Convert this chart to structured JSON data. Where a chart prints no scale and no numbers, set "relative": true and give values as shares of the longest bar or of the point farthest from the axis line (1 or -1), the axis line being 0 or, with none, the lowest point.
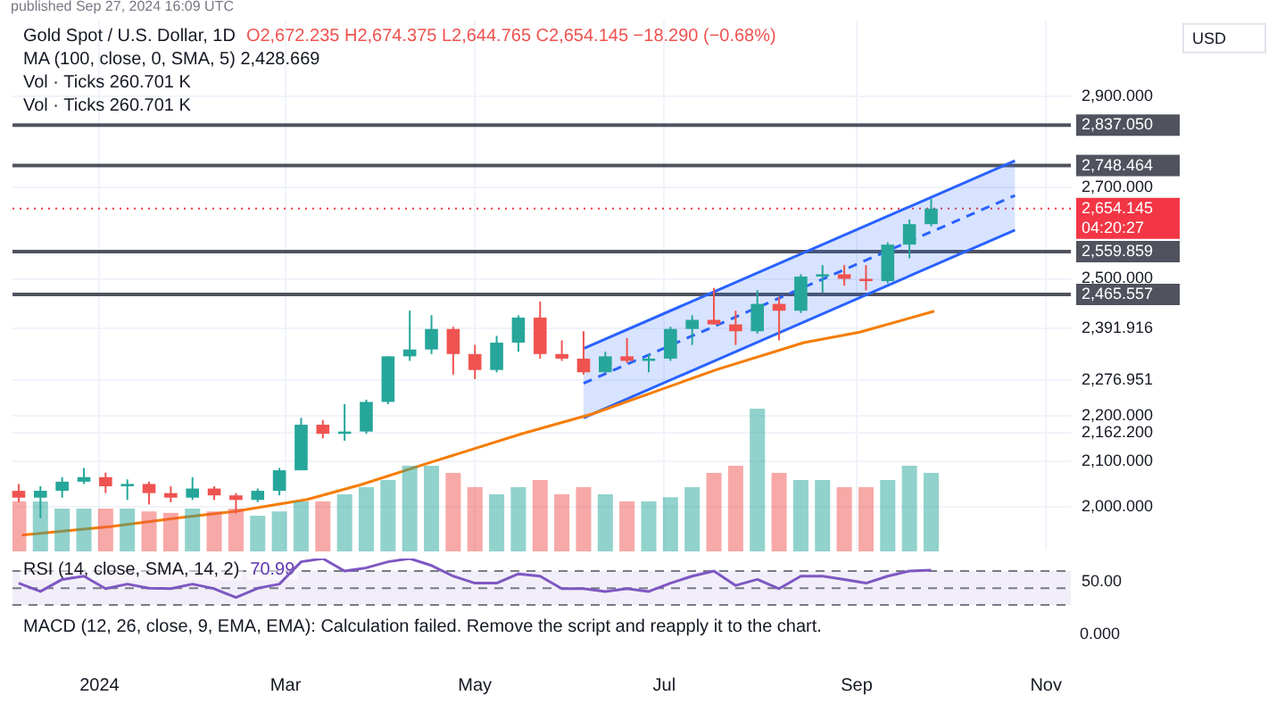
{
  "chart_data": [
    {
      "type": "candlestick",
      "subtitle": "published Sep 27, 2024 16:09 UTC",
      "title": "Gold Spot / U.S. Dollar, 1D",
      "ylabel": "USD",
      "annotations": [
        "O2,672.235 H2,674.375 L2,644.765 C2,654.145 −18.290 (−0.68%)",
        "MA (100, close, 0, SMA, 5) 2,428.669",
        "Vol · Ticks 260.701 K",
        "Vol · Ticks 260.701 K"
      ],
      "x": [
        "2023-12-06",
        "2023-12-13",
        "2023-12-20",
        "2023-12-27",
        "2024-01-03",
        "2024-01-10",
        "2024-01-17",
        "2024-01-24",
        "2024-01-31",
        "2024-02-07",
        "2024-02-14",
        "2024-02-21",
        "2024-02-28",
        "2024-03-06",
        "2024-03-13",
        "2024-03-20",
        "2024-03-27",
        "2024-04-03",
        "2024-04-10",
        "2024-04-17",
        "2024-04-24",
        "2024-05-01",
        "2024-05-08",
        "2024-05-15",
        "2024-05-22",
        "2024-05-29",
        "2024-06-05",
        "2024-06-12",
        "2024-06-19",
        "2024-06-26",
        "2024-07-03",
        "2024-07-10",
        "2024-07-17",
        "2024-07-24",
        "2024-07-31",
        "2024-08-07",
        "2024-08-14",
        "2024-08-21",
        "2024-08-28",
        "2024-09-04",
        "2024-09-11",
        "2024-09-18",
        "2024-09-25"
      ],
      "ohlc": [
        [
          2035,
          2050,
          2010,
          2020
        ],
        [
          2020,
          2045,
          1975,
          2035
        ],
        [
          2035,
          2065,
          2020,
          2055
        ],
        [
          2055,
          2085,
          2050,
          2065
        ],
        [
          2065,
          2075,
          2030,
          2045
        ],
        [
          2045,
          2060,
          2015,
          2050
        ],
        [
          2050,
          2055,
          2005,
          2030
        ],
        [
          2030,
          2045,
          2010,
          2020
        ],
        [
          2020,
          2065,
          2015,
          2040
        ],
        [
          2040,
          2045,
          2015,
          2025
        ],
        [
          2025,
          2030,
          1985,
          2015
        ],
        [
          2015,
          2040,
          2010,
          2035
        ],
        [
          2035,
          2085,
          2025,
          2080
        ],
        [
          2080,
          2195,
          2080,
          2180
        ],
        [
          2180,
          2190,
          2150,
          2160
        ],
        [
          2160,
          2225,
          2145,
          2165
        ],
        [
          2165,
          2235,
          2160,
          2230
        ],
        [
          2230,
          2330,
          2225,
          2330
        ],
        [
          2330,
          2430,
          2320,
          2345
        ],
        [
          2345,
          2420,
          2335,
          2390
        ],
        [
          2390,
          2395,
          2290,
          2335
        ],
        [
          2335,
          2355,
          2280,
          2300
        ],
        [
          2300,
          2375,
          2295,
          2360
        ],
        [
          2360,
          2420,
          2340,
          2415
        ],
        [
          2415,
          2450,
          2325,
          2335
        ],
        [
          2335,
          2365,
          2320,
          2325
        ],
        [
          2325,
          2385,
          2290,
          2295
        ],
        [
          2295,
          2340,
          2295,
          2330
        ],
        [
          2330,
          2370,
          2315,
          2320
        ],
        [
          2320,
          2335,
          2295,
          2325
        ],
        [
          2325,
          2395,
          2320,
          2390
        ],
        [
          2390,
          2420,
          2355,
          2410
        ],
        [
          2410,
          2480,
          2400,
          2400
        ],
        [
          2400,
          2430,
          2355,
          2385
        ],
        [
          2385,
          2475,
          2380,
          2445
        ],
        [
          2445,
          2460,
          2365,
          2430
        ],
        [
          2430,
          2510,
          2425,
          2505
        ],
        [
          2505,
          2530,
          2470,
          2510
        ],
        [
          2510,
          2530,
          2485,
          2500
        ],
        [
          2500,
          2530,
          2475,
          2495
        ],
        [
          2495,
          2580,
          2490,
          2575
        ],
        [
          2575,
          2630,
          2545,
          2620
        ],
        [
          2620,
          2675,
          2615,
          2654
        ]
      ],
      "colors": [
        "#ef5350",
        "#26a69a",
        "#26a69a",
        "#26a69a",
        "#ef5350",
        "#26a69a",
        "#ef5350",
        "#ef5350",
        "#26a69a",
        "#ef5350",
        "#ef5350",
        "#26a69a",
        "#26a69a",
        "#26a69a",
        "#ef5350",
        "#26a69a",
        "#26a69a",
        "#26a69a",
        "#26a69a",
        "#26a69a",
        "#ef5350",
        "#ef5350",
        "#26a69a",
        "#26a69a",
        "#ef5350",
        "#ef5350",
        "#ef5350",
        "#26a69a",
        "#ef5350",
        "#26a69a",
        "#26a69a",
        "#26a69a",
        "#ef5350",
        "#ef5350",
        "#26a69a",
        "#ef5350",
        "#26a69a",
        "#26a69a",
        "#ef5350",
        "#ef5350",
        "#26a69a",
        "#26a69a",
        "#26a69a"
      ],
      "series": [
        {
          "type": "line",
          "color": "#f57c00",
          "x": [
            "2023-12-07",
            "2024-01-05",
            "2024-01-28",
            "2024-02-14",
            "2024-03-08",
            "2024-03-25",
            "2024-04-17",
            "2024-05-16",
            "2024-06-08",
            "2024-07-18",
            "2024-08-15",
            "2024-09-02",
            "2024-09-26"
          ],
          "values": [
            1938,
            1957,
            1977,
            1990,
            2016,
            2048,
            2098,
            2160,
            2204,
            2301,
            2360,
            2383,
            2429
          ]
        },
        {
          "type": "line",
          "color": "#2962ff",
          "x": [
            "2024-06-05",
            "2024-10-22"
          ],
          "values": [
            2347,
            2759
          ]
        },
        {
          "type": "line",
          "color": "#2962ff",
          "x": [
            "2024-06-05",
            "2024-10-22"
          ],
          "values": [
            2195,
            2607
          ]
        },
        {
          "type": "line",
          "color": "#2962ff",
          "line_style": "dashed",
          "x": [
            "2024-06-05",
            "2024-10-22"
          ],
          "values": [
            2271,
            2683
          ],
          "lower": [
            2195,
            2607
          ],
          "upper": [
            2347,
            2759
          ]
        }
      ],
      "xlim": [
        "2023-12-04",
        "2024-11-09"
      ],
      "xticks": [
        {
          "value": "2024-01-01",
          "label": "2024"
        },
        {
          "value": "2024-03-01",
          "label": "Mar"
        },
        {
          "value": "2024-05-01",
          "label": "May"
        },
        {
          "value": "2024-07-01",
          "label": "Jul"
        },
        {
          "value": "2024-09-01",
          "label": "Sep"
        },
        {
          "value": "2024-11-01",
          "label": "Nov"
        }
      ],
      "ylim": [
        1906,
        3067
      ],
      "yticks": [
        {
          "value": 2000,
          "label": "2,000.000"
        },
        {
          "value": 2100,
          "label": "2,100.000"
        },
        {
          "value": 2162.2,
          "label": "2,162.200"
        },
        {
          "value": 2200,
          "label": "2,200.000"
        },
        {
          "value": 2276.951,
          "label": "2,276.951"
        },
        {
          "value": 2391.916,
          "label": "2,391.916"
        },
        {
          "value": 2500,
          "label": "2,500.000"
        },
        {
          "value": 2700,
          "label": "2,700.000"
        },
        {
          "value": 2900,
          "label": "2,900.000"
        }
      ],
      "ref_lines": [
        {
          "axis": "y",
          "value": 2837.05,
          "label": "2,837.050",
          "color": "#50535e"
        },
        {
          "axis": "y",
          "value": 2748.464,
          "label": "2,748.464",
          "color": "#50535e"
        },
        {
          "axis": "y",
          "value": 2559.859,
          "label": "2,559.859",
          "color": "#50535e"
        },
        {
          "axis": "y",
          "value": 2465.557,
          "label": "2,465.557",
          "color": "#50535e"
        },
        {
          "axis": "y",
          "value": 2654.145,
          "label": "2,654.145 04:20:27",
          "color": "#f23645",
          "line_style": "dotted"
        }
      ],
      "grid": true
    },
    {
      "type": "bar",
      "relative": true,
      "tick_labels": false,
      "categories": [
        null,
        null,
        null,
        null,
        null,
        null,
        null,
        null,
        null,
        null,
        null,
        null,
        null,
        null,
        null,
        null,
        null,
        null,
        null,
        null,
        null,
        null,
        null,
        null,
        null,
        null,
        null,
        null,
        null,
        null,
        null,
        null,
        null,
        null,
        null,
        null,
        null,
        null,
        null,
        null,
        null,
        null,
        null
      ],
      "values": [
        0.35,
        0.35,
        0.3,
        0.3,
        0.3,
        0.3,
        0.28,
        0.27,
        0.3,
        0.28,
        0.3,
        0.25,
        0.28,
        0.35,
        0.35,
        0.4,
        0.45,
        0.5,
        0.6,
        0.6,
        0.55,
        0.45,
        0.4,
        0.45,
        0.5,
        0.4,
        0.45,
        0.4,
        0.35,
        0.35,
        0.38,
        0.45,
        0.55,
        0.6,
        1,
        0.55,
        0.5,
        0.5,
        0.45,
        0.45,
        0.5,
        0.6,
        0.55
      ],
      "colors": [
        "#ef5350",
        "#26a69a",
        "#26a69a",
        "#26a69a",
        "#ef5350",
        "#26a69a",
        "#ef5350",
        "#ef5350",
        "#26a69a",
        "#ef5350",
        "#ef5350",
        "#26a69a",
        "#26a69a",
        "#26a69a",
        "#ef5350",
        "#26a69a",
        "#26a69a",
        "#26a69a",
        "#26a69a",
        "#26a69a",
        "#ef5350",
        "#ef5350",
        "#26a69a",
        "#26a69a",
        "#ef5350",
        "#ef5350",
        "#ef5350",
        "#26a69a",
        "#ef5350",
        "#26a69a",
        "#26a69a",
        "#26a69a",
        "#ef5350",
        "#ef5350",
        "#26a69a",
        "#ef5350",
        "#26a69a",
        "#26a69a",
        "#ef5350",
        "#ef5350",
        "#26a69a",
        "#26a69a",
        "#26a69a"
      ]
    },
    {
      "type": "line",
      "relative": true,
      "title": "RSI (14, close, SMA, 14, 2)",
      "annotations": [
        "70.99",
        "50.00"
      ],
      "tick_labels": false,
      "categories": [
        null,
        null,
        null,
        null,
        null,
        null,
        null,
        null,
        null,
        null,
        null,
        null,
        null,
        null,
        null,
        null,
        null,
        null,
        null,
        null,
        null,
        null,
        null,
        null,
        null,
        null,
        null,
        null,
        null,
        null,
        null,
        null,
        null,
        null,
        null,
        null,
        null,
        null,
        null,
        null,
        null,
        null,
        null
      ],
      "series": [
        {
          "color": "#7e57c2",
          "values": [
            0.47,
            0.29,
            0.55,
            0.62,
            0.35,
            0.45,
            0.36,
            0.35,
            0.45,
            0.35,
            0.16,
            0.36,
            0.45,
            0.93,
            1,
            0.73,
            0.8,
            0.93,
            1,
            0.85,
            0.62,
            0.47,
            0.47,
            0.67,
            0.62,
            0.35,
            0.35,
            0.29,
            0.35,
            0.29,
            0.47,
            0.62,
            0.73,
            0.42,
            0.55,
            0.35,
            0.62,
            0.62,
            0.55,
            0.47,
            0.62,
            0.73,
            0.75
          ]
        }
      ],
      "bands": [
        {
          "axis": "y",
          "from": 0,
          "to": 0.73,
          "color": "#7e57c2"
        }
      ],
      "ref_lines": [
        {
          "axis": "y",
          "value": 0.73,
          "color": "#787b86",
          "line_style": "dashed"
        },
        {
          "axis": "y",
          "value": 0.36,
          "color": "#787b86",
          "line_style": "dashed"
        },
        {
          "axis": "y",
          "value": 0,
          "color": "#787b86",
          "line_style": "dashed"
        }
      ]
    },
    {
      "type": "other",
      "annotations": [
        "MACD (12, 26, close, 9, EMA, EMA): Calculation failed. Remove the script and reapply it to the chart.",
        "0.000"
      ]
    }
  ]
}
